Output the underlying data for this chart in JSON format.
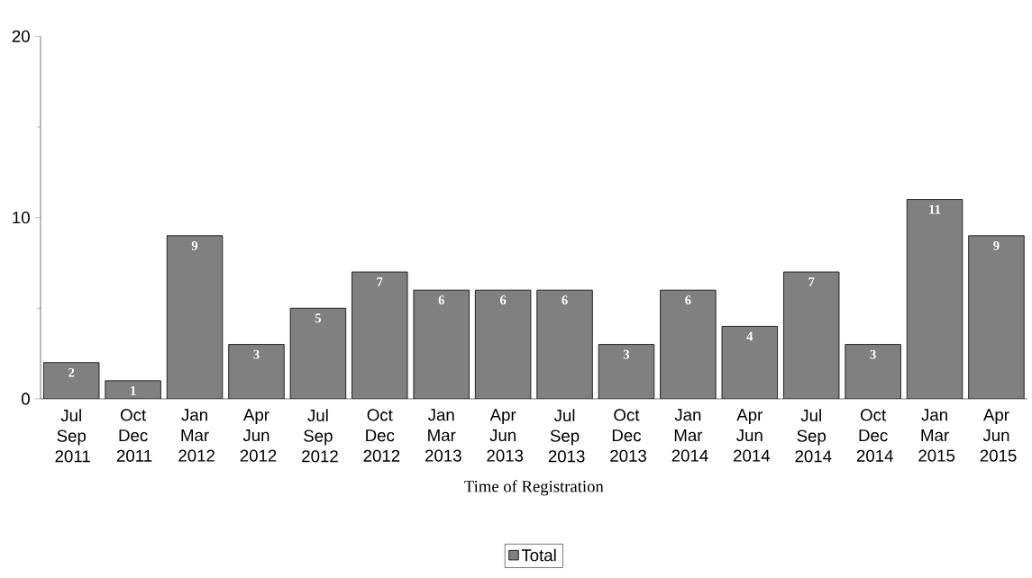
{
  "chart_data": {
    "type": "bar",
    "xlabel": "Time of Registration",
    "categories": [
      "Jul Sep 2011",
      "Oct Dec 2011",
      "Jan Mar 2012",
      "Apr Jun 2012",
      "Jul Sep 2012",
      "Oct Dec 2012",
      "Jan Mar 2013",
      "Apr Jun 2013",
      "Jul Sep 2013",
      "Oct Dec 2013",
      "Jan Mar 2014",
      "Apr Jun 2014",
      "Jul Sep 2014",
      "Oct Dec 2014",
      "Jan Mar 2015",
      "Apr Jun 2015"
    ],
    "series": [
      {
        "name": "Total",
        "color": "#808080",
        "values": [
          2,
          1,
          9,
          3,
          5,
          7,
          6,
          6,
          6,
          3,
          6,
          4,
          7,
          3,
          11,
          9
        ]
      }
    ],
    "ylim": [
      0,
      20
    ],
    "yticks": [
      0,
      {
        "value": 5,
        "label": null
      },
      10,
      {
        "value": 15,
        "label": null
      },
      20
    ],
    "data_labels": true,
    "grid": false,
    "legend": "bottom"
  }
}
